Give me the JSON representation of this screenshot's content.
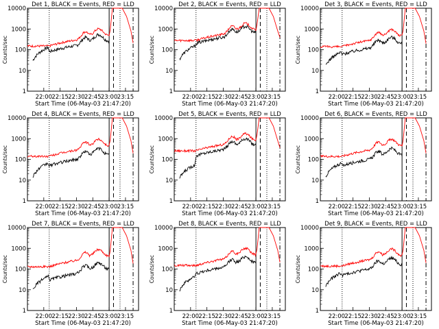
{
  "ylabel": "Counts/sec",
  "xlabel": "Start Time (06-May-03 21:47:20)",
  "y_ticks": [
    {
      "value": 1,
      "label": "1"
    },
    {
      "value": 10,
      "label": "10"
    },
    {
      "value": 100,
      "label": "100"
    },
    {
      "value": 1000,
      "label": "1000"
    },
    {
      "value": 10000,
      "label": "10000"
    }
  ],
  "x_ticks": [
    {
      "value": 0,
      "label": "22:00"
    },
    {
      "value": 15,
      "label": "22:15"
    },
    {
      "value": 30,
      "label": "22:30"
    },
    {
      "value": 45,
      "label": "22:45"
    },
    {
      "value": 60,
      "label": "23:00"
    },
    {
      "value": 75,
      "label": "23:15"
    }
  ],
  "colors": {
    "events": "#000000",
    "lld": "#ff0000"
  },
  "chart_data": [
    {
      "type": "line",
      "title": "Det 1, BLACK = Events, RED = LLD",
      "xlim": [
        -15,
        87
      ],
      "ylim": [
        1,
        10000
      ],
      "yscale": "log",
      "events_base": 80,
      "lld_base": 150,
      "events_pre": 60,
      "vlines": [
        {
          "x": 5,
          "style": "dotted"
        },
        {
          "x": 60,
          "style": "solid"
        },
        {
          "x": 64,
          "style": "dashed"
        },
        {
          "x": 70,
          "style": "dotted"
        },
        {
          "x": 82,
          "style": "dashdot"
        }
      ]
    },
    {
      "type": "line",
      "title": "Det 2, BLACK = Events, RED = LLD",
      "xlim": [
        -15,
        87
      ],
      "ylim": [
        1,
        10000
      ],
      "yscale": "log",
      "events_base": 200,
      "lld_base": 280,
      "events_pre": 70,
      "vlines": [
        {
          "x": 5,
          "style": "dotted"
        },
        {
          "x": 60,
          "style": "solid"
        },
        {
          "x": 64,
          "style": "dashed"
        },
        {
          "x": 70,
          "style": "dotted"
        },
        {
          "x": 82,
          "style": "dashdot"
        }
      ]
    },
    {
      "type": "line",
      "title": "Det 3, BLACK = Events, RED = LLD",
      "xlim": [
        -15,
        87
      ],
      "ylim": [
        1,
        10000
      ],
      "yscale": "log",
      "events_base": 60,
      "lld_base": 140,
      "events_pre": 35,
      "vlines": [
        {
          "x": 5,
          "style": "dotted"
        },
        {
          "x": 60,
          "style": "solid"
        },
        {
          "x": 64,
          "style": "dashed"
        },
        {
          "x": 70,
          "style": "dotted"
        },
        {
          "x": 82,
          "style": "dashdot"
        }
      ]
    },
    {
      "type": "line",
      "title": "Det 4, BLACK = Events, RED = LLD",
      "xlim": [
        -15,
        87
      ],
      "ylim": [
        1,
        10000
      ],
      "yscale": "log",
      "events_base": 50,
      "lld_base": 140,
      "events_pre": 30,
      "vlines": [
        {
          "x": 5,
          "style": "dotted"
        },
        {
          "x": 60,
          "style": "solid"
        },
        {
          "x": 64,
          "style": "dashed"
        },
        {
          "x": 70,
          "style": "dotted"
        },
        {
          "x": 82,
          "style": "dashdot"
        }
      ]
    },
    {
      "type": "line",
      "title": "Det 5, BLACK = Events, RED = LLD",
      "xlim": [
        -15,
        87
      ],
      "ylim": [
        1,
        10000
      ],
      "yscale": "log",
      "events_base": 150,
      "lld_base": 260,
      "events_pre": 25,
      "vlines": [
        {
          "x": 5,
          "style": "dotted"
        },
        {
          "x": 60,
          "style": "solid"
        },
        {
          "x": 64,
          "style": "dashed"
        },
        {
          "x": 70,
          "style": "dotted"
        },
        {
          "x": 82,
          "style": "dashdot"
        }
      ]
    },
    {
      "type": "line",
      "title": "Det 6, BLACK = Events, RED = LLD",
      "xlim": [
        -15,
        87
      ],
      "ylim": [
        1,
        10000
      ],
      "yscale": "log",
      "events_base": 50,
      "lld_base": 140,
      "events_pre": 30,
      "vlines": [
        {
          "x": 5,
          "style": "dotted"
        },
        {
          "x": 60,
          "style": "solid"
        },
        {
          "x": 64,
          "style": "dashed"
        },
        {
          "x": 70,
          "style": "dotted"
        },
        {
          "x": 82,
          "style": "dashdot"
        }
      ]
    },
    {
      "type": "line",
      "title": "Det 7, BLACK = Events, RED = LLD",
      "xlim": [
        -15,
        87
      ],
      "ylim": [
        1,
        10000
      ],
      "yscale": "log",
      "events_base": 30,
      "lld_base": 130,
      "events_pre": 20,
      "vlines": [
        {
          "x": 5,
          "style": "dotted"
        },
        {
          "x": 60,
          "style": "solid"
        },
        {
          "x": 64,
          "style": "dashed"
        },
        {
          "x": 70,
          "style": "dotted"
        },
        {
          "x": 82,
          "style": "dashdot"
        }
      ]
    },
    {
      "type": "line",
      "title": "Det 8, BLACK = Events, RED = LLD",
      "xlim": [
        -15,
        87
      ],
      "ylim": [
        1,
        10000
      ],
      "yscale": "log",
      "events_base": 60,
      "lld_base": 150,
      "events_pre": 20,
      "vlines": [
        {
          "x": 5,
          "style": "dotted"
        },
        {
          "x": 60,
          "style": "solid"
        },
        {
          "x": 64,
          "style": "dashed"
        },
        {
          "x": 70,
          "style": "dotted"
        },
        {
          "x": 82,
          "style": "dashdot"
        }
      ]
    },
    {
      "type": "line",
      "title": "Det 9, BLACK = Events, RED = LLD",
      "xlim": [
        -15,
        87
      ],
      "ylim": [
        1,
        10000
      ],
      "yscale": "log",
      "events_base": 50,
      "lld_base": 140,
      "events_pre": 30,
      "vlines": [
        {
          "x": 5,
          "style": "dotted"
        },
        {
          "x": 60,
          "style": "solid"
        },
        {
          "x": 64,
          "style": "dashed"
        },
        {
          "x": 70,
          "style": "dotted"
        },
        {
          "x": 82,
          "style": "dashdot"
        }
      ]
    }
  ]
}
